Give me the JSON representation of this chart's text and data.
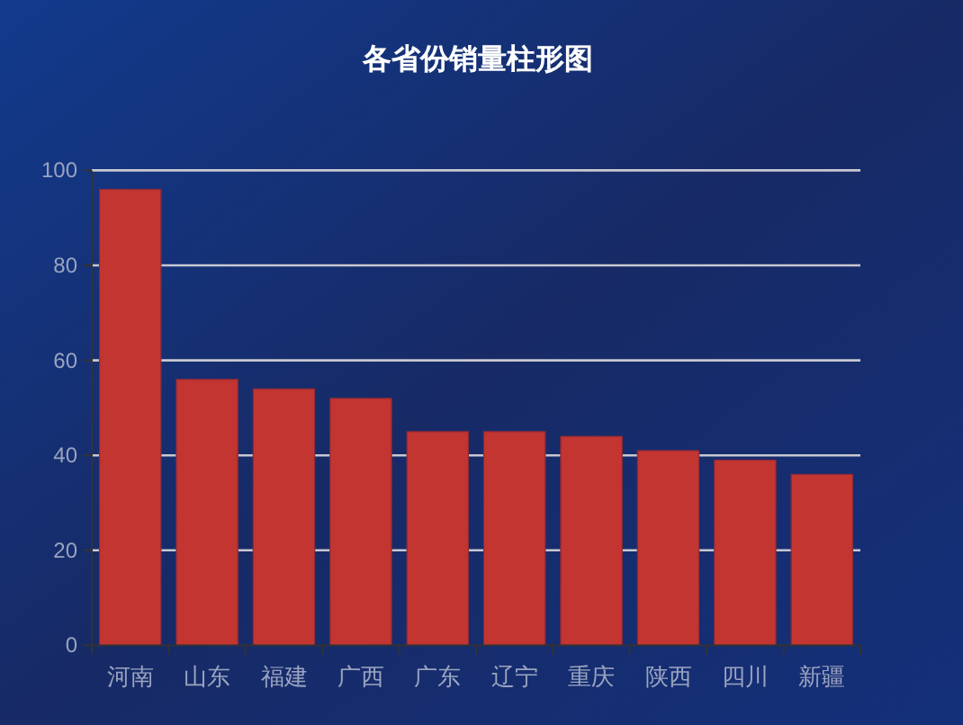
{
  "chart_data": {
    "type": "bar",
    "title": "各省份销量柱形图",
    "categories": [
      "河南",
      "山东",
      "福建",
      "广西",
      "广东",
      "辽宁",
      "重庆",
      "陕西",
      "四川",
      "新疆"
    ],
    "values": [
      96,
      56,
      54,
      52,
      45,
      45,
      44,
      41,
      39,
      36
    ],
    "color": "#c23531",
    "ylim": [
      0,
      100
    ],
    "yticks": [
      0,
      20,
      40,
      60,
      80,
      100
    ],
    "grid": "y"
  }
}
